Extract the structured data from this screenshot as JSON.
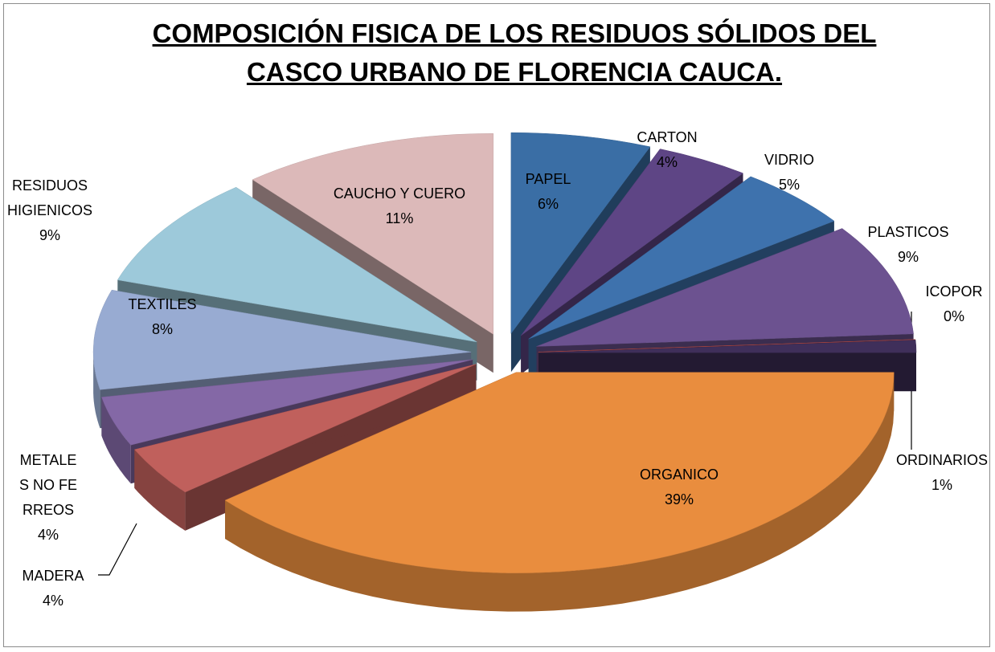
{
  "chart_data": {
    "type": "pie",
    "title": "COMPOSICIÓN FISICA DE LOS RESIDUOS SÓLIDOS DEL CASCO URBANO DE FLORENCIA CAUCA.",
    "categories": [
      "PAPEL",
      "CARTON",
      "VIDRIO",
      "PLASTICOS",
      "ICOPOR",
      "ORDINARIOS",
      "ORGANICO",
      "MADERA",
      "METALES NO FERREOS",
      "TEXTILES",
      "RESIDUOS HIGIENICOS",
      "CAUCHO Y CUERO"
    ],
    "values": [
      6,
      4,
      5,
      9,
      0,
      1,
      39,
      4,
      4,
      8,
      9,
      11
    ],
    "value_labels": [
      "6%",
      "4%",
      "5%",
      "9%",
      "0%",
      "1%",
      "39%",
      "4%",
      "4%",
      "8%",
      "9%",
      "11%"
    ],
    "colors": [
      "#3a6ea5",
      "#5e4585",
      "#3e72ad",
      "#6c5290",
      "#c0504d",
      "#3f2f5a",
      "#e98d3e",
      "#c0605c",
      "#8468a6",
      "#98abd2",
      "#9dc9da",
      "#dcb9b9"
    ]
  }
}
